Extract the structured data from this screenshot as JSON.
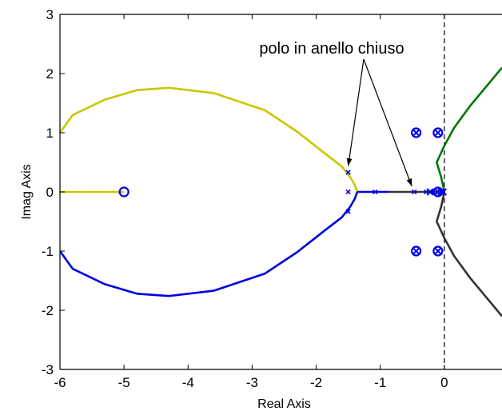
{
  "chart_data": {
    "type": "line",
    "title": "",
    "xlabel": "Real Axis",
    "ylabel": "Imag Axis",
    "xlim": [
      -6,
      0.9
    ],
    "ylim": [
      -3,
      3
    ],
    "xticks": [
      -6,
      -5,
      -4,
      -3,
      -2,
      -1,
      0
    ],
    "yticks": [
      -3,
      -2,
      -1,
      0,
      1,
      2,
      3
    ],
    "grid": false,
    "annotation": "polo in anello chiuso",
    "series": [
      {
        "color": "#c8c800",
        "points": [
          [
            -6.0,
            1.0
          ],
          [
            -5.8,
            1.3
          ],
          [
            -5.3,
            1.56
          ],
          [
            -4.8,
            1.72
          ],
          [
            -4.3,
            1.76
          ],
          [
            -3.6,
            1.67
          ],
          [
            -2.8,
            1.38
          ],
          [
            -2.3,
            1.02
          ],
          [
            -1.9,
            0.68
          ],
          [
            -1.6,
            0.43
          ],
          [
            -1.47,
            0.25
          ],
          [
            -1.4,
            0.12
          ],
          [
            -1.36,
            0.0
          ]
        ]
      },
      {
        "color": "#c8c800",
        "points": [
          [
            -6.0,
            0.0
          ],
          [
            -5.0,
            0.0
          ]
        ]
      },
      {
        "color": "#0000e0",
        "points": [
          [
            -6.0,
            -1.0
          ],
          [
            -5.8,
            -1.3
          ],
          [
            -5.3,
            -1.56
          ],
          [
            -4.8,
            -1.72
          ],
          [
            -4.3,
            -1.76
          ],
          [
            -3.6,
            -1.67
          ],
          [
            -2.8,
            -1.38
          ],
          [
            -2.3,
            -1.02
          ],
          [
            -1.9,
            -0.68
          ],
          [
            -1.6,
            -0.43
          ],
          [
            -1.47,
            -0.25
          ],
          [
            -1.4,
            -0.12
          ],
          [
            -1.36,
            0.0
          ]
        ]
      },
      {
        "color": "#0000e0",
        "points": [
          [
            -1.36,
            0.0
          ],
          [
            -0.85,
            0.0
          ]
        ]
      },
      {
        "color": "#333333",
        "points": [
          [
            -0.85,
            0.0
          ],
          [
            -0.12,
            0.0
          ]
        ]
      },
      {
        "color": "#007700",
        "points": [
          [
            0.0,
            0.0
          ],
          [
            -0.05,
            0.25
          ],
          [
            -0.12,
            0.5
          ],
          [
            0.0,
            0.78
          ],
          [
            0.15,
            1.08
          ],
          [
            0.4,
            1.45
          ],
          [
            0.9,
            2.1
          ]
        ]
      },
      {
        "color": "#333333",
        "points": [
          [
            0.0,
            0.0
          ],
          [
            -0.05,
            -0.25
          ],
          [
            -0.12,
            -0.5
          ],
          [
            0.0,
            -0.78
          ],
          [
            0.15,
            -1.08
          ],
          [
            0.4,
            -1.45
          ],
          [
            0.9,
            -2.1
          ]
        ]
      }
    ],
    "zeros": [
      [
        -5.0,
        0.0
      ],
      [
        -0.1,
        0.0
      ],
      [
        -0.44,
        1.0
      ],
      [
        -0.44,
        -1.0
      ],
      [
        -0.1,
        1.0
      ],
      [
        -0.1,
        -1.0
      ]
    ],
    "open_loop_poles": [
      [
        -0.44,
        1.0
      ],
      [
        -0.44,
        -1.0
      ],
      [
        -0.1,
        1.0
      ],
      [
        -0.1,
        -1.0
      ],
      [
        -0.1,
        0.0
      ],
      [
        -0.22,
        0.0
      ],
      [
        -0.05,
        0.0
      ],
      [
        -0.02,
        0.0
      ]
    ],
    "closed_loop_poles": [
      [
        -1.5,
        0.33
      ],
      [
        -1.5,
        -0.33
      ],
      [
        -1.5,
        0.0
      ],
      [
        -1.08,
        0.0
      ],
      [
        -0.47,
        0.0
      ],
      [
        -0.28,
        0.0
      ],
      [
        -0.18,
        0.0
      ]
    ],
    "imag_axis_line": "dashed"
  }
}
